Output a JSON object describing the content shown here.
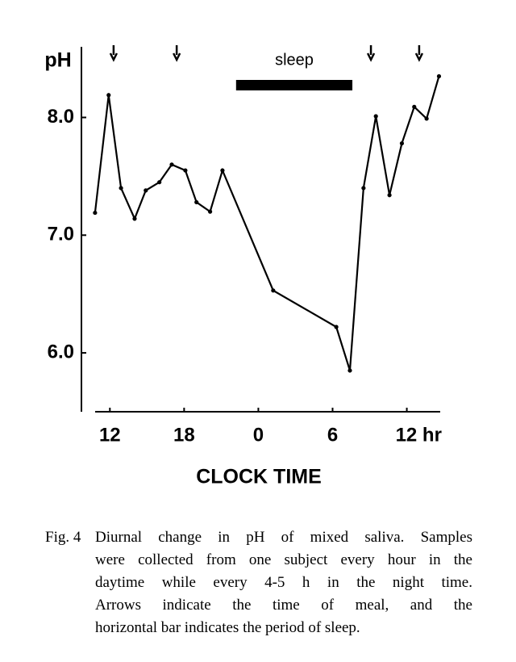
{
  "chart_data": {
    "type": "line",
    "y_label": "pH",
    "x_label": "CLOCK TIME",
    "x": [
      10.8,
      11.9,
      12.9,
      14.0,
      14.9,
      16.0,
      17.0,
      18.1,
      19.0,
      20.1,
      21.1,
      25.2,
      30.3,
      31.4,
      32.5,
      33.5,
      34.6,
      35.6,
      36.6,
      37.6,
      38.6
    ],
    "values": [
      7.19,
      8.19,
      7.4,
      7.14,
      7.38,
      7.45,
      7.6,
      7.55,
      7.28,
      7.2,
      7.55,
      6.53,
      6.22,
      5.85,
      7.4,
      8.01,
      7.34,
      7.78,
      8.09,
      7.99,
      8.35
    ],
    "color": "#000000",
    "xlim": [
      9.7,
      38.7
    ],
    "ylim": [
      5.5,
      8.6
    ],
    "xticks": [
      12,
      18,
      {
        "value": 24,
        "label": "0"
      },
      {
        "value": 30,
        "label": "6"
      },
      {
        "value": 36,
        "label": "12 hr"
      }
    ],
    "yticks": [
      {
        "value": 6,
        "label": "6.0"
      },
      {
        "value": 7,
        "label": "7.0"
      },
      {
        "value": 8,
        "label": "8.0"
      }
    ],
    "meal_arrows": [
      12.3,
      17.4,
      33.1,
      37.0
    ],
    "sleep_bar": {
      "label": "sleep",
      "start": 22.2,
      "end": 31.6
    },
    "caption_label": "Fig. 4",
    "caption_lines": [
      "Diurnal change in pH of mixed saliva. Samples",
      "were collected from one subject every hour in the",
      "daytime while every 4-5 h in the night time.",
      "Arrows indicate the time of meal, and the",
      "horizontal bar indicates the period of sleep."
    ]
  }
}
